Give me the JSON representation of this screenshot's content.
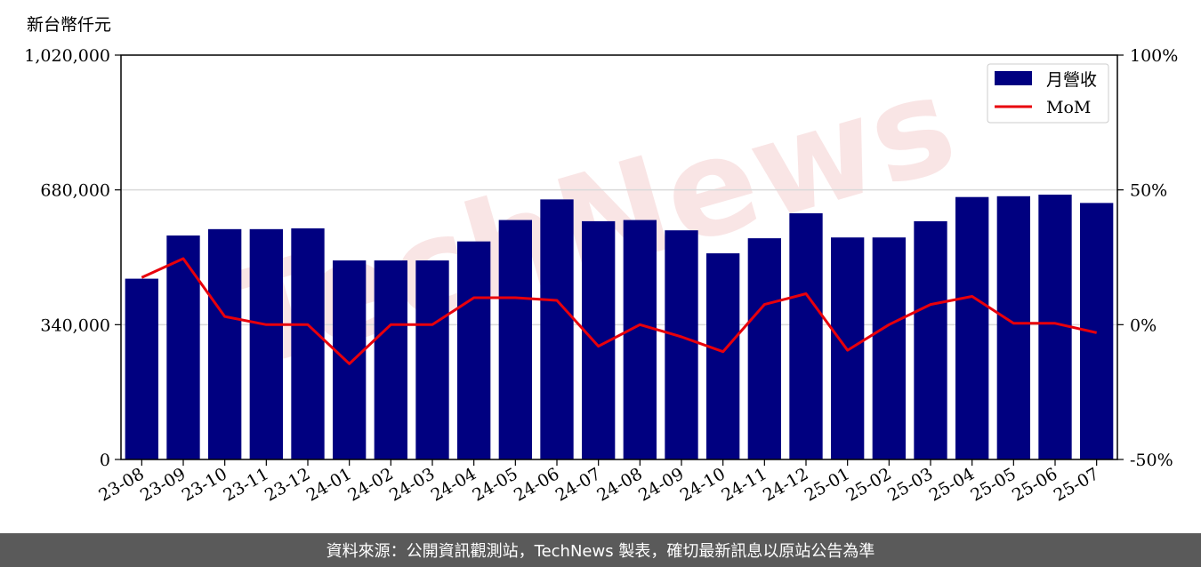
{
  "colors": {
    "bar": "#000080",
    "line": "#e8000b",
    "grid": "#d9d9d9",
    "footer_bg": "#5a5a5a"
  },
  "watermark": "TechNews",
  "footer": {
    "text": "資料來源：公開資訊觀測站，TechNews 製表，確切最新訊息以原站公告為準"
  },
  "chart_data": {
    "type": "bar",
    "unit_label": "新台幣仟元",
    "categories": [
      "23-08",
      "23-09",
      "23-10",
      "23-11",
      "23-12",
      "24-01",
      "24-02",
      "24-03",
      "24-04",
      "24-05",
      "24-06",
      "24-07",
      "24-08",
      "24-09",
      "24-10",
      "24-11",
      "24-12",
      "25-01",
      "25-02",
      "25-03",
      "25-04",
      "25-05",
      "25-06",
      "25-07"
    ],
    "series": [
      {
        "name": "月營收",
        "axis": "left",
        "type": "bar",
        "values": [
          456000,
          565000,
          581000,
          581000,
          583000,
          502000,
          502000,
          502000,
          550000,
          604000,
          656000,
          601000,
          604000,
          578000,
          520000,
          558000,
          621000,
          560000,
          560000,
          601000,
          662000,
          664000,
          668000,
          647000
        ]
      },
      {
        "name": "MoM",
        "axis": "right",
        "type": "line",
        "values": [
          17.5,
          24.5,
          3,
          0,
          0,
          -14.5,
          0,
          0,
          10,
          10,
          9,
          -8,
          0,
          -4.5,
          -10,
          7.5,
          11.5,
          -9.5,
          0,
          7.5,
          10.5,
          0.5,
          0.5,
          -3
        ]
      }
    ],
    "left_axis": {
      "ylim": [
        0,
        1020000
      ],
      "ticks": [
        0,
        340000,
        680000,
        1020000
      ],
      "tick_labels": [
        "0",
        "340,000",
        "680,000",
        "1,020,000"
      ]
    },
    "right_axis": {
      "ylim": [
        -50,
        100
      ],
      "ticks": [
        -50,
        0,
        50,
        100
      ],
      "tick_labels": [
        "-50%",
        "0%",
        "50%",
        "100%"
      ]
    },
    "grid": "horizontal",
    "legend_position": "top-right"
  }
}
